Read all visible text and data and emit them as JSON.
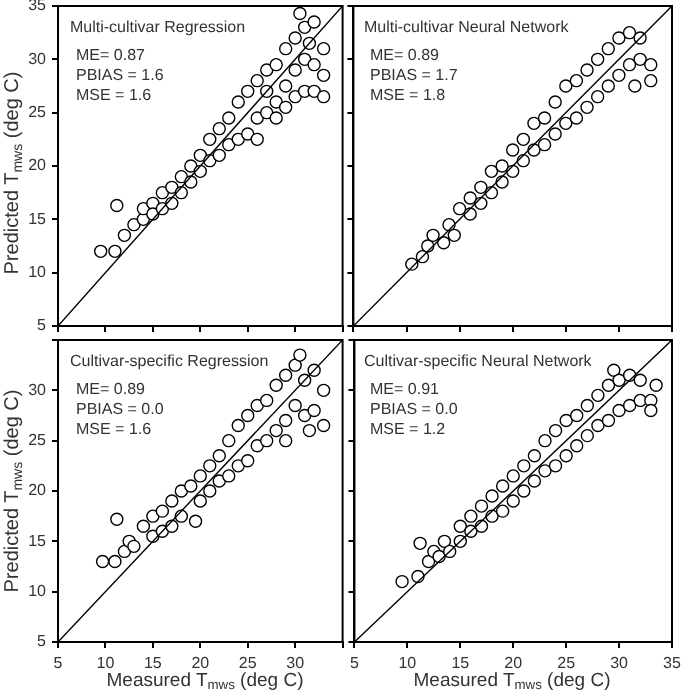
{
  "chart_data": [
    {
      "type": "scatter",
      "title": "Multi-cultivar Regression",
      "annotations": [
        "ME= 0.87",
        "PBIAS = 1.6",
        "MSE = 1.6"
      ],
      "ylabel": "Predicted T$_{mws}$ (deg C)",
      "xlim": [
        5,
        35
      ],
      "ylim": [
        5,
        35
      ],
      "xticks": [
        5,
        10,
        15,
        20,
        25,
        30,
        35
      ],
      "yticks": [
        5,
        10,
        15,
        20,
        25,
        30,
        35
      ],
      "tick_labels": "y",
      "series": [
        {
          "type": "scatter",
          "marker": "circle",
          "color": "#000000",
          "x": [
            9.5,
            11,
            11.2,
            12,
            13,
            14,
            14,
            15,
            15,
            16,
            16,
            17,
            17,
            18,
            18,
            19,
            19,
            20,
            20,
            21,
            21,
            22,
            22,
            23,
            23,
            24,
            24,
            25,
            25,
            26,
            26,
            26,
            27,
            27,
            27,
            28,
            28,
            28,
            29,
            29,
            29,
            30,
            30,
            30,
            31,
            31,
            31,
            32,
            32,
            32,
            33,
            33,
            30.5,
            31.5,
            33
          ],
          "values": [
            12,
            12,
            16.3,
            13.5,
            14.5,
            15,
            16,
            16.5,
            15.5,
            17.5,
            16,
            18,
            16.5,
            19,
            17.5,
            20,
            18.5,
            21,
            19.5,
            22.5,
            20.5,
            23.5,
            21,
            24.5,
            22,
            26,
            22.5,
            27,
            23,
            28,
            24.5,
            22.5,
            29,
            25,
            27,
            29.5,
            26,
            24.5,
            31,
            27.5,
            25.5,
            32,
            29,
            26.5,
            33,
            30,
            27,
            33.5,
            29.5,
            27,
            31,
            28.5,
            34.3,
            31.5,
            26.5
          ]
        },
        {
          "type": "line",
          "color": "#000000",
          "x": [
            5,
            35
          ],
          "values": [
            5,
            35
          ]
        }
      ]
    },
    {
      "type": "scatter",
      "title": "Multi-cultivar Neural Network",
      "annotations": [
        "ME= 0.89",
        "PBIAS = 1.7",
        "MSE = 1.8"
      ],
      "xlim": [
        5,
        35
      ],
      "ylim": [
        5,
        35
      ],
      "xticks": [
        5,
        10,
        15,
        20,
        25,
        30,
        35
      ],
      "yticks": [
        5,
        10,
        15,
        20,
        25,
        30,
        35
      ],
      "tick_labels": false,
      "series": [
        {
          "type": "scatter",
          "marker": "circle",
          "color": "#000000",
          "x": [
            10.5,
            11.5,
            12,
            12.5,
            13.5,
            14,
            14.5,
            15,
            16,
            16,
            17,
            17,
            18,
            18,
            19,
            19,
            20,
            20,
            21,
            21,
            22,
            22,
            23,
            23,
            24,
            24,
            25,
            25,
            26,
            26,
            27,
            27,
            28,
            28,
            29,
            29,
            30,
            30,
            31,
            31,
            32,
            32,
            33,
            33,
            31.5
          ],
          "values": [
            10.8,
            11.5,
            12.5,
            13.5,
            12.8,
            14.5,
            13.5,
            16,
            17,
            15.5,
            18,
            16.5,
            19.5,
            17.5,
            20,
            18.5,
            21.5,
            19.5,
            22.5,
            20.5,
            24,
            21.5,
            24.5,
            22,
            26,
            23,
            27.5,
            24,
            28,
            24.5,
            29,
            25.5,
            30,
            26.5,
            31,
            27.5,
            32,
            28.5,
            32.5,
            29.5,
            32,
            30,
            29.5,
            28,
            27.5
          ]
        },
        {
          "type": "line",
          "color": "#000000",
          "x": [
            5,
            35
          ],
          "values": [
            5,
            35
          ]
        }
      ]
    },
    {
      "type": "scatter",
      "title": "Cultivar-specific Regression",
      "annotations": [
        "ME= 0.89",
        "PBIAS = 0.0",
        "MSE = 1.6"
      ],
      "xlabel": "Measured T$_{mws}$ (deg C)",
      "ylabel": "Predicted T$_{mws}$ (deg C)",
      "xlim": [
        5,
        35
      ],
      "ylim": [
        5,
        35
      ],
      "xticks": [
        5,
        10,
        15,
        20,
        25,
        30,
        {
          "value": 35,
          "label": null
        }
      ],
      "yticks": [
        5,
        10,
        15,
        20,
        25,
        30,
        {
          "value": 35,
          "label": null
        }
      ],
      "series": [
        {
          "type": "scatter",
          "marker": "circle",
          "color": "#000000",
          "x": [
            9.7,
            11,
            11.2,
            12,
            12.5,
            13,
            14,
            15,
            15,
            16,
            16,
            17,
            17,
            18,
            18,
            19,
            19.5,
            20,
            20,
            21,
            21,
            22,
            22,
            23,
            23,
            24,
            24,
            25,
            25,
            26,
            26,
            27,
            27,
            28,
            28,
            29,
            29,
            29,
            30,
            30,
            30.5,
            31,
            31,
            32,
            32,
            33,
            33,
            31.5
          ],
          "values": [
            13,
            13,
            17.2,
            14,
            15,
            14.5,
            16.5,
            17.5,
            15.5,
            18,
            16,
            19,
            16.5,
            20,
            17.5,
            20.5,
            17,
            21.5,
            19,
            22.5,
            20,
            23.5,
            21,
            25,
            21.5,
            26.5,
            22.5,
            27.5,
            23,
            28.5,
            24.5,
            29,
            25,
            30.5,
            26,
            31.5,
            27,
            25,
            32.5,
            28.5,
            33.5,
            31,
            27.5,
            32,
            28,
            30,
            26.5,
            26
          ]
        },
        {
          "type": "line",
          "color": "#000000",
          "x": [
            5,
            35
          ],
          "values": [
            5,
            35
          ]
        }
      ]
    },
    {
      "type": "scatter",
      "title": "Cultivar-specific Neural Network",
      "annotations": [
        "ME= 0.91",
        "PBIAS = 0.0",
        "MSE = 1.2"
      ],
      "xlabel": "Measured T$_{mws}$ (deg C)",
      "xlim": [
        5,
        35
      ],
      "ylim": [
        5,
        35
      ],
      "xticks": [
        5,
        10,
        15,
        20,
        25,
        30,
        35
      ],
      "yticks": [
        5,
        10,
        15,
        20,
        25,
        30,
        35
      ],
      "tick_labels": "x",
      "series": [
        {
          "type": "scatter",
          "marker": "circle",
          "color": "#000000",
          "x": [
            9.5,
            11,
            11.2,
            12,
            12.5,
            13,
            13.5,
            14,
            15,
            15,
            16,
            16,
            17,
            17,
            18,
            18,
            19,
            19,
            20,
            20,
            21,
            21,
            22,
            22,
            23,
            23,
            24,
            24,
            25,
            25,
            26,
            26,
            27,
            27,
            28,
            28,
            29,
            29,
            29.5,
            30,
            30,
            31,
            31,
            32,
            32,
            33,
            33,
            33.5
          ],
          "values": [
            11,
            11.5,
            14.8,
            13,
            14,
            13.5,
            15,
            14,
            16.5,
            15,
            17.5,
            16,
            18.5,
            16.5,
            19.5,
            17.5,
            20.5,
            18,
            21.5,
            19,
            22.5,
            20,
            23.5,
            21,
            25,
            22,
            26,
            22.5,
            27,
            23.5,
            27.5,
            24.5,
            28.5,
            25.5,
            29.5,
            26.5,
            30.5,
            27,
            32,
            31,
            28,
            31.5,
            28.5,
            31,
            29,
            29,
            28,
            30.5
          ]
        },
        {
          "type": "line",
          "color": "#000000",
          "x": [
            5,
            35
          ],
          "values": [
            5,
            35
          ]
        }
      ]
    }
  ]
}
